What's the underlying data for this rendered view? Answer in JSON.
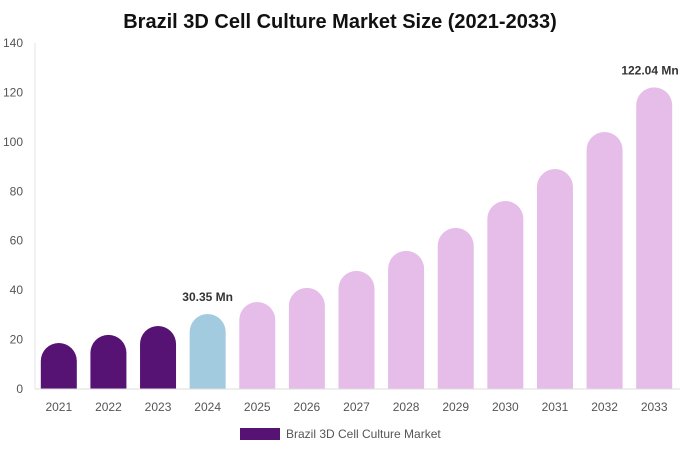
{
  "chart_data": {
    "type": "bar",
    "title": "Brazil 3D Cell Culture Market Size (2021-2033)",
    "categories": [
      "2021",
      "2022",
      "2023",
      "2024",
      "2025",
      "2026",
      "2027",
      "2028",
      "2029",
      "2030",
      "2031",
      "2032",
      "2033"
    ],
    "series": [
      {
        "name": "Brazil 3D Cell Culture Market",
        "values": [
          18.6,
          21.9,
          25.5,
          30.35,
          35.2,
          40.9,
          47.8,
          55.9,
          65.2,
          76.1,
          89.0,
          104.0,
          122.04
        ]
      }
    ],
    "bar_colors": {
      "historical": "#561373",
      "base_year": "#a3cbe0",
      "forecast": "#e6bde9"
    },
    "base_year_index": 3,
    "data_labels": [
      {
        "index": 3,
        "text": "30.35 Mn"
      },
      {
        "index": 12,
        "text": "122.04 Mn"
      }
    ],
    "yticks": [
      0,
      20,
      40,
      60,
      80,
      100,
      120,
      140
    ],
    "ylim": [
      0,
      140
    ],
    "xlabel": "",
    "ylabel": "",
    "grid": false,
    "legend_position": "bottom"
  }
}
